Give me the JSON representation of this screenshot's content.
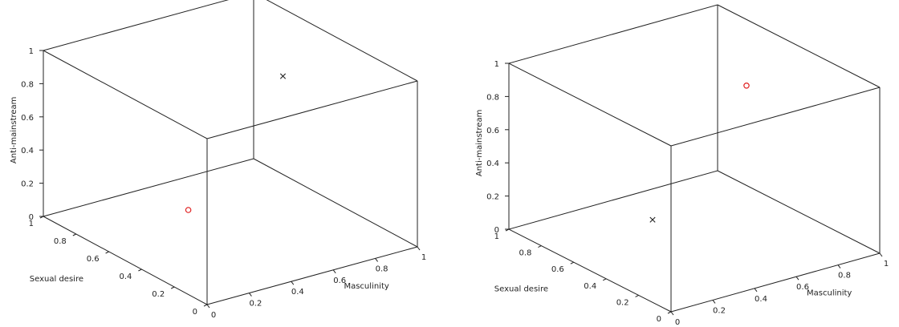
{
  "chart_data": [
    {
      "type": "scatter",
      "xlabel": "Masculinity",
      "ylabel": "Sexual desire",
      "zlabel": "Anti-mainstream",
      "xlim": [
        0,
        1
      ],
      "ylim": [
        0,
        1
      ],
      "zlim": [
        0,
        1
      ],
      "x_ticks": [
        "0",
        "0.2",
        "0.4",
        "0.6",
        "0.8",
        "1"
      ],
      "y_ticks": [
        "0",
        "0.2",
        "0.4",
        "0.6",
        "0.8",
        "1"
      ],
      "z_ticks": [
        "0",
        "0.2",
        "0.4",
        "0.6",
        "0.8",
        "1"
      ],
      "grid": false,
      "series": [
        {
          "marker": "circle",
          "color": "#e02020",
          "points": [
            {
              "x": 0.3,
              "y": 0.5,
              "z": 0.2
            }
          ]
        },
        {
          "marker": "x",
          "color": "#222222",
          "points": [
            {
              "x": 0.75,
              "y": 0.5,
              "z": 0.85
            }
          ]
        }
      ]
    },
    {
      "type": "scatter",
      "xlabel": "Masculinity",
      "ylabel": "Sexual desire",
      "zlabel": "Anti-mainstream",
      "xlim": [
        0,
        1
      ],
      "ylim": [
        0,
        1
      ],
      "zlim": [
        0,
        1
      ],
      "x_ticks": [
        "0",
        "0.2",
        "0.4",
        "0.6",
        "0.8",
        "1"
      ],
      "y_ticks": [
        "0",
        "0.2",
        "0.4",
        "0.6",
        "0.8",
        "1"
      ],
      "z_ticks": [
        "0",
        "0.2",
        "0.4",
        "0.6",
        "0.8",
        "1"
      ],
      "grid": false,
      "series": [
        {
          "marker": "circle",
          "color": "#e02020",
          "points": [
            {
              "x": 0.75,
              "y": 0.5,
              "z": 0.85
            }
          ]
        },
        {
          "marker": "x",
          "color": "#222222",
          "points": [
            {
              "x": 0.3,
              "y": 0.5,
              "z": 0.2
            }
          ]
        }
      ]
    }
  ]
}
